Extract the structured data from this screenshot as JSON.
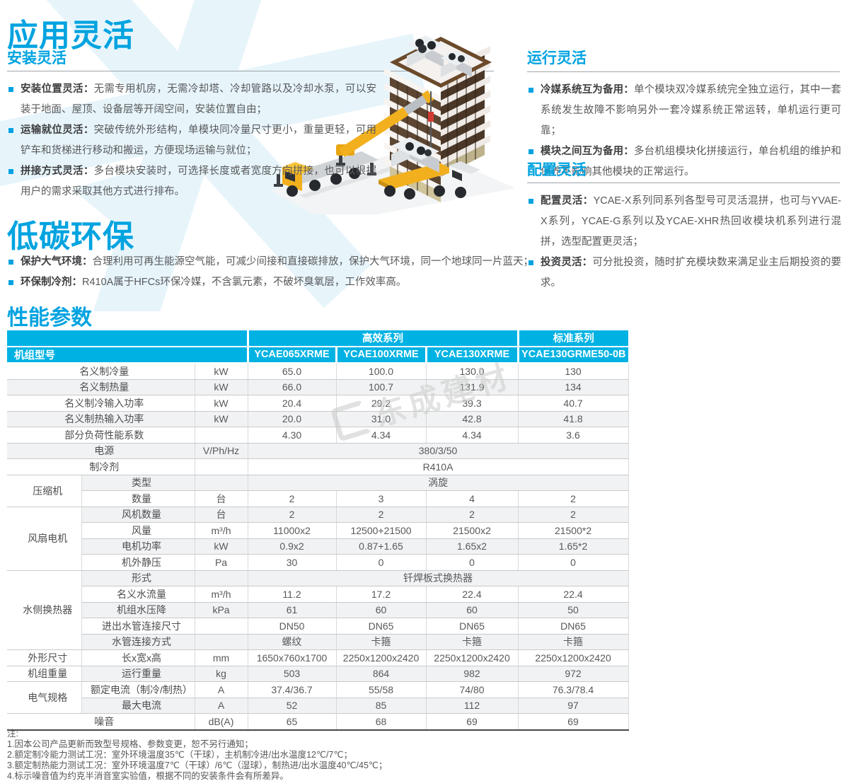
{
  "titles": {
    "main": "应用灵活",
    "low_carbon": "低碳环保",
    "performance": "性能参数"
  },
  "sections": {
    "install": {
      "heading": "安装灵活",
      "bullets": [
        {
          "label": "安装位置灵活：",
          "text": "无需专用机房，无需冷却塔、冷却管路以及冷却水泵，可以安装于地面、屋顶、设备层等开阔空间，安装位置自由；"
        },
        {
          "label": "运输就位灵活：",
          "text": "突破传统外形结构，单模块同冷量尺寸更小，重量更轻，可用铲车和货梯进行移动和搬运，方便现场运输与就位；"
        },
        {
          "label": "拼接方式灵活：",
          "text": "多台模块安装时，可选择长度或者宽度方向拼接，也可以根据用户的需求采取其他方式进行排布。"
        }
      ]
    },
    "operation": {
      "heading": "运行灵活",
      "bullets": [
        {
          "label": "冷媒系统互为备用：",
          "text": "单个模块双冷媒系统完全独立运行，其中一套系统发生故障不影响另外一套冷媒系统正常运转，单机运行更可靠；"
        },
        {
          "label": "模块之间互为备用：",
          "text": "多台机组模块化拼接运行，单台机组的维护和保养不影响其他模块的正常运行。"
        }
      ]
    },
    "config": {
      "heading": "配置灵活",
      "bullets": [
        {
          "label": "配置灵活：",
          "text": "YCAE-X系列同系列各型号可灵活混拼，也可与YVAE-X系列，YCAE-G系列以及YCAE-XHR热回收模块机系列进行混拼，选型配置更灵活；"
        },
        {
          "label": "投资灵活：",
          "text": "可分批投资，随时扩充模块数来满足业主后期投资的要求。"
        }
      ]
    },
    "low_carbon": {
      "bullets": [
        {
          "label": "保护大气环境：",
          "text": "合理利用可再生能源空气能，可减少间接和直接碳排放，保护大气环境，同一个地球同一片蓝天；"
        },
        {
          "label": "环保制冷剂：",
          "text": "R410A属于HFCs环保冷媒，不含氯元素，不破坏臭氧层，工作效率高。"
        }
      ]
    }
  },
  "table": {
    "series_headers": [
      "高效系列",
      "标准系列"
    ],
    "model_header": "机组型号",
    "models": [
      "YCAE065XRME",
      "YCAE100XRME",
      "YCAE130XRME",
      "YCAE130GRME50-0B"
    ],
    "rows": [
      {
        "label": "名义制冷量",
        "unit": "kW",
        "values": [
          "65.0",
          "100.0",
          "130.0",
          "130"
        ]
      },
      {
        "label": "名义制热量",
        "unit": "kW",
        "values": [
          "66.0",
          "100.7",
          "131.9",
          "134"
        ]
      },
      {
        "label": "名义制冷输入功率",
        "unit": "kW",
        "values": [
          "20.4",
          "29.2",
          "39.3",
          "40.7"
        ]
      },
      {
        "label": "名义制热输入功率",
        "unit": "kW",
        "values": [
          "20.0",
          "31.0",
          "42.8",
          "41.8"
        ]
      },
      {
        "label": "部分负荷性能系数",
        "unit": "",
        "values": [
          "4.30",
          "4.34",
          "4.34",
          "3.6"
        ]
      },
      {
        "label": "电源",
        "unit": "V/Ph/Hz",
        "merged": "380/3/50"
      },
      {
        "label": "制冷剂",
        "unit": "",
        "merged": "R410A"
      },
      {
        "cat": "压缩机",
        "span": 2,
        "label": "类型",
        "unit": "",
        "merged": "涡旋"
      },
      {
        "cont": true,
        "label": "数量",
        "unit": "台",
        "values": [
          "2",
          "3",
          "4",
          "2"
        ]
      },
      {
        "cat": "风扇电机",
        "span": 4,
        "label": "风机数量",
        "unit": "台",
        "values": [
          "2",
          "2",
          "2",
          "2"
        ]
      },
      {
        "cont": true,
        "label": "风量",
        "unit": "m³/h",
        "values": [
          "11000x2",
          "12500+21500",
          "21500x2",
          "21500*2"
        ]
      },
      {
        "cont": true,
        "label": "电机功率",
        "unit": "kW",
        "values": [
          "0.9x2",
          "0.87+1.65",
          "1.65x2",
          "1.65*2"
        ]
      },
      {
        "cont": true,
        "label": "机外静压",
        "unit": "Pa",
        "values": [
          "30",
          "0",
          "0",
          "0"
        ]
      },
      {
        "cat": "水侧换热器",
        "span": 5,
        "label": "形式",
        "unit": "",
        "merged": "钎焊板式换热器"
      },
      {
        "cont": true,
        "label": "名义水流量",
        "unit": "m³/h",
        "values": [
          "11.2",
          "17.2",
          "22.4",
          "22.4"
        ]
      },
      {
        "cont": true,
        "label": "机组水压降",
        "unit": "kPa",
        "values": [
          "61",
          "60",
          "60",
          "50"
        ]
      },
      {
        "cont": true,
        "label": "进出水管连接尺寸",
        "unit": "",
        "values": [
          "DN50",
          "DN65",
          "DN65",
          "DN65"
        ]
      },
      {
        "cont": true,
        "label": "水管连接方式",
        "unit": "",
        "values": [
          "螺纹",
          "卡箍",
          "卡箍",
          "卡箍"
        ]
      },
      {
        "cat": "外形尺寸",
        "span": 1,
        "label": "长x宽x高",
        "unit": "mm",
        "values": [
          "1650x760x1700",
          "2250x1200x2420",
          "2250x1200x2420",
          "2250x1200x2420"
        ]
      },
      {
        "cat": "机组重量",
        "span": 1,
        "label": "运行重量",
        "unit": "kg",
        "values": [
          "503",
          "864",
          "982",
          "972"
        ]
      },
      {
        "cat": "电气规格",
        "span": 2,
        "label": "额定电流（制冷/制热）",
        "unit": "A",
        "values": [
          "37.4/36.7",
          "55/58",
          "74/80",
          "76.3/78.4"
        ]
      },
      {
        "cont": true,
        "label": "最大电流",
        "unit": "A",
        "values": [
          "52",
          "85",
          "112",
          "97"
        ]
      },
      {
        "label": "噪音",
        "unit": "dB(A)",
        "values": [
          "65",
          "68",
          "69",
          "69"
        ]
      }
    ]
  },
  "notes": {
    "title": "注:",
    "items": [
      "1.因本公司产品更新而致型号规格、参数变更，恕不另行通知；",
      "2.额定制冷能力测试工况：室外环境温度35℃（干球），主机制冷进/出水温度12℃/7℃；",
      "3.额定制热能力测试工况：室外环境温度7℃（干球）/6℃（湿球），制热进/出水温度40℃/45℃；",
      "4.标示噪音值为约克半消音室实验值，根据不同的安装条件会有所差异。"
    ]
  },
  "watermark": {
    "text": "东成建材"
  },
  "colors": {
    "heading_blue": "#00a3e0",
    "table_header_cyan": "#00b2e3",
    "body_text": "#58595b",
    "stripe_grey": "#f1f2f3"
  }
}
